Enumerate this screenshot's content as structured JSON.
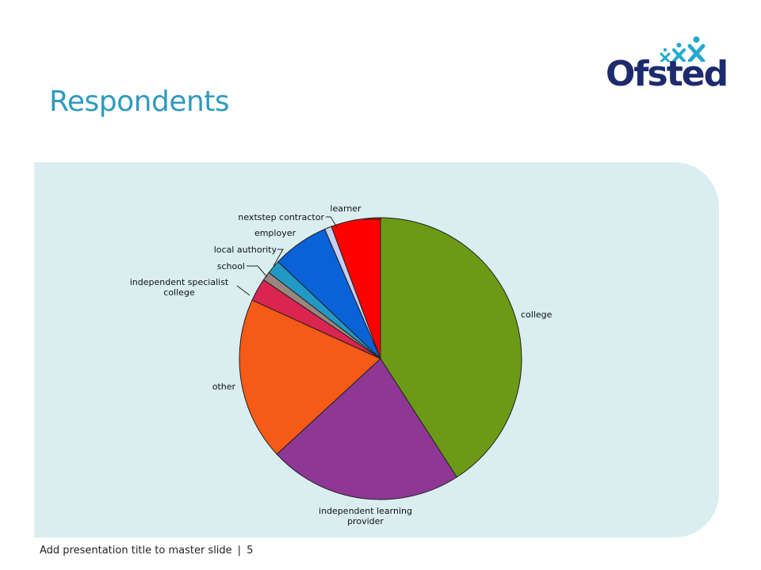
{
  "slide": {
    "title": "Respondents",
    "logo_text": "Ofsted",
    "footer_text": "Add presentation title to master slide",
    "page_number": "5"
  },
  "colors": {
    "title": "#2e9bbd",
    "logo": "#1d2a6e",
    "logo_accent": "#23a9d0",
    "panel": "#daeef0"
  },
  "chart_data": {
    "type": "pie",
    "start_angle_deg": 0,
    "direction": "clockwise",
    "slices": [
      {
        "label": "college",
        "value": 40.5,
        "color": "#6b9a16"
      },
      {
        "label": "independent learning provider",
        "value": 22.0,
        "color": "#8e3795"
      },
      {
        "label": "other",
        "value": 18.5,
        "color": "#f55a16"
      },
      {
        "label": "independent specialist college",
        "value": 2.6,
        "color": "#d9254f"
      },
      {
        "label": "school",
        "value": 1.0,
        "color": "#9a8680"
      },
      {
        "label": "local authority",
        "value": 1.6,
        "color": "#2199c4"
      },
      {
        "label": "employer",
        "value": 6.4,
        "color": "#0962d8"
      },
      {
        "label": "nextstep contractor",
        "value": 0.8,
        "color": "#c7cef0"
      },
      {
        "label": "learner",
        "value": 5.6,
        "color": "#ff0000"
      }
    ]
  }
}
